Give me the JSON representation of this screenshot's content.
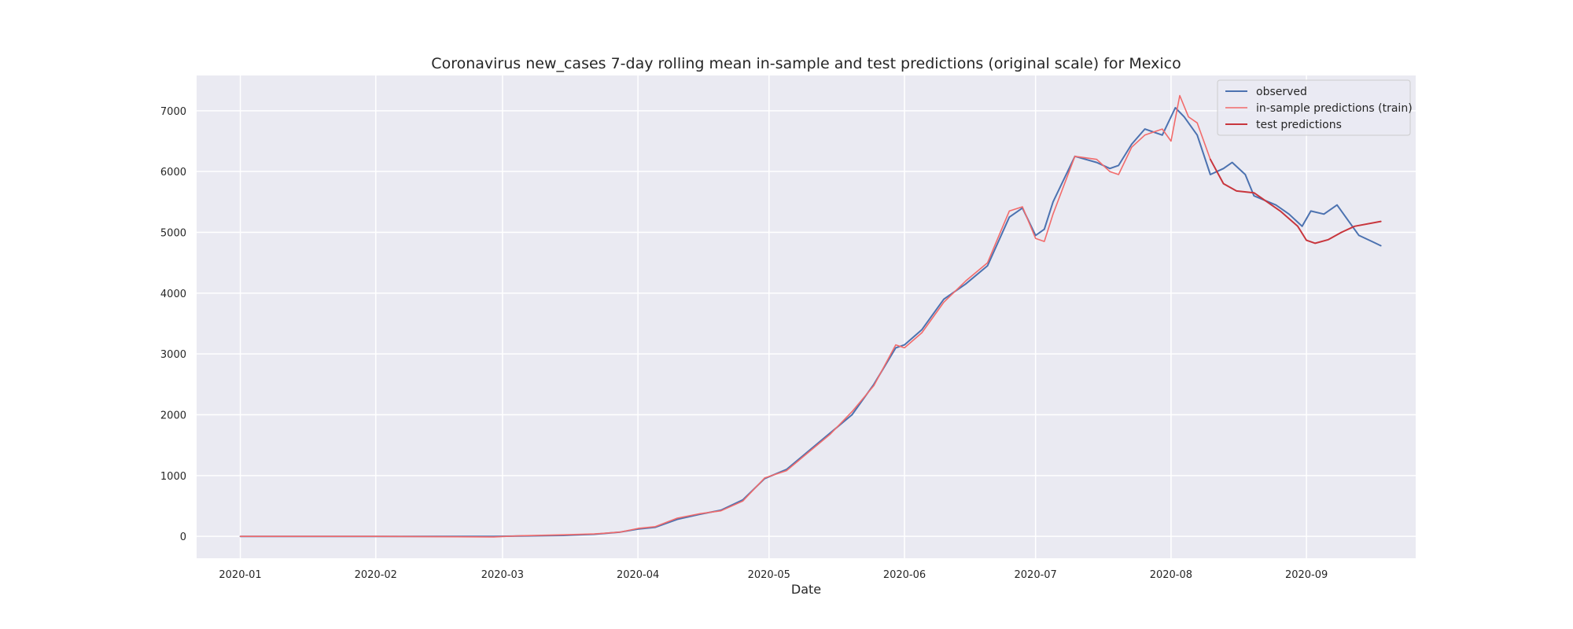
{
  "chart_data": {
    "type": "line",
    "title": "Coronavirus new_cases 7-day rolling mean in-sample and test predictions (original scale) for Mexico",
    "xlabel": "Date",
    "ylabel": "",
    "xlim": [
      "2019-12-22",
      "2020-09-26"
    ],
    "ylim": [
      -360,
      7580
    ],
    "grid": true,
    "legend_position": "top-right",
    "x_ticks": [
      "2020-01",
      "2020-02",
      "2020-03",
      "2020-04",
      "2020-05",
      "2020-06",
      "2020-07",
      "2020-08",
      "2020-09"
    ],
    "y_ticks": [
      0,
      1000,
      2000,
      3000,
      4000,
      5000,
      6000,
      7000
    ],
    "series": [
      {
        "name": "observed",
        "color": "#4c72b0",
        "points": [
          [
            "2020-01-01",
            0
          ],
          [
            "2020-02-01",
            0
          ],
          [
            "2020-02-28",
            0
          ],
          [
            "2020-03-05",
            5
          ],
          [
            "2020-03-15",
            15
          ],
          [
            "2020-03-22",
            35
          ],
          [
            "2020-03-28",
            70
          ],
          [
            "2020-04-01",
            120
          ],
          [
            "2020-04-05",
            150
          ],
          [
            "2020-04-10",
            280
          ],
          [
            "2020-04-15",
            360
          ],
          [
            "2020-04-20",
            430
          ],
          [
            "2020-04-25",
            600
          ],
          [
            "2020-04-30",
            950
          ],
          [
            "2020-05-05",
            1100
          ],
          [
            "2020-05-10",
            1400
          ],
          [
            "2020-05-15",
            1700
          ],
          [
            "2020-05-20",
            2000
          ],
          [
            "2020-05-25",
            2500
          ],
          [
            "2020-05-30",
            3100
          ],
          [
            "2020-06-01",
            3150
          ],
          [
            "2020-06-05",
            3400
          ],
          [
            "2020-06-10",
            3900
          ],
          [
            "2020-06-15",
            4150
          ],
          [
            "2020-06-20",
            4450
          ],
          [
            "2020-06-25",
            5250
          ],
          [
            "2020-06-28",
            5400
          ],
          [
            "2020-07-01",
            4950
          ],
          [
            "2020-07-03",
            5050
          ],
          [
            "2020-07-05",
            5500
          ],
          [
            "2020-07-10",
            6250
          ],
          [
            "2020-07-15",
            6150
          ],
          [
            "2020-07-18",
            6050
          ],
          [
            "2020-07-20",
            6100
          ],
          [
            "2020-07-23",
            6450
          ],
          [
            "2020-07-26",
            6700
          ],
          [
            "2020-07-30",
            6600
          ],
          [
            "2020-08-02",
            7050
          ],
          [
            "2020-08-04",
            6900
          ],
          [
            "2020-08-07",
            6600
          ],
          [
            "2020-08-10",
            5950
          ],
          [
            "2020-08-13",
            6050
          ],
          [
            "2020-08-15",
            6150
          ],
          [
            "2020-08-18",
            5950
          ],
          [
            "2020-08-20",
            5600
          ],
          [
            "2020-08-25",
            5450
          ],
          [
            "2020-08-28",
            5300
          ],
          [
            "2020-08-31",
            5100
          ],
          [
            "2020-09-02",
            5350
          ],
          [
            "2020-09-05",
            5300
          ],
          [
            "2020-09-08",
            5450
          ],
          [
            "2020-09-10",
            5250
          ],
          [
            "2020-09-13",
            4950
          ],
          [
            "2020-09-16",
            4850
          ],
          [
            "2020-09-18",
            4780
          ]
        ]
      },
      {
        "name": "in-sample predictions (train)",
        "color": "#f26b6b",
        "points": [
          [
            "2020-01-01",
            0
          ],
          [
            "2020-02-01",
            0
          ],
          [
            "2020-02-28",
            -10
          ],
          [
            "2020-03-05",
            10
          ],
          [
            "2020-03-15",
            25
          ],
          [
            "2020-03-22",
            40
          ],
          [
            "2020-03-28",
            70
          ],
          [
            "2020-04-01",
            130
          ],
          [
            "2020-04-05",
            160
          ],
          [
            "2020-04-10",
            300
          ],
          [
            "2020-04-15",
            370
          ],
          [
            "2020-04-20",
            420
          ],
          [
            "2020-04-25",
            580
          ],
          [
            "2020-04-30",
            960
          ],
          [
            "2020-05-05",
            1080
          ],
          [
            "2020-05-10",
            1380
          ],
          [
            "2020-05-15",
            1680
          ],
          [
            "2020-05-20",
            2050
          ],
          [
            "2020-05-25",
            2480
          ],
          [
            "2020-05-30",
            3150
          ],
          [
            "2020-06-01",
            3100
          ],
          [
            "2020-06-05",
            3350
          ],
          [
            "2020-06-10",
            3850
          ],
          [
            "2020-06-15",
            4200
          ],
          [
            "2020-06-20",
            4500
          ],
          [
            "2020-06-25",
            5350
          ],
          [
            "2020-06-28",
            5420
          ],
          [
            "2020-07-01",
            4900
          ],
          [
            "2020-07-03",
            4850
          ],
          [
            "2020-07-05",
            5300
          ],
          [
            "2020-07-10",
            6250
          ],
          [
            "2020-07-15",
            6200
          ],
          [
            "2020-07-18",
            6000
          ],
          [
            "2020-07-20",
            5950
          ],
          [
            "2020-07-23",
            6400
          ],
          [
            "2020-07-26",
            6600
          ],
          [
            "2020-07-30",
            6700
          ],
          [
            "2020-08-01",
            6500
          ],
          [
            "2020-08-03",
            7250
          ],
          [
            "2020-08-05",
            6900
          ],
          [
            "2020-08-07",
            6800
          ],
          [
            "2020-08-10",
            6200
          ]
        ]
      },
      {
        "name": "test predictions",
        "color": "#c8363d",
        "points": [
          [
            "2020-08-10",
            6200
          ],
          [
            "2020-08-13",
            5800
          ],
          [
            "2020-08-16",
            5680
          ],
          [
            "2020-08-20",
            5650
          ],
          [
            "2020-08-23",
            5500
          ],
          [
            "2020-08-26",
            5350
          ],
          [
            "2020-08-30",
            5100
          ],
          [
            "2020-09-01",
            4870
          ],
          [
            "2020-09-03",
            4820
          ],
          [
            "2020-09-06",
            4880
          ],
          [
            "2020-09-09",
            5000
          ],
          [
            "2020-09-12",
            5100
          ],
          [
            "2020-09-18",
            5180
          ]
        ]
      }
    ]
  }
}
